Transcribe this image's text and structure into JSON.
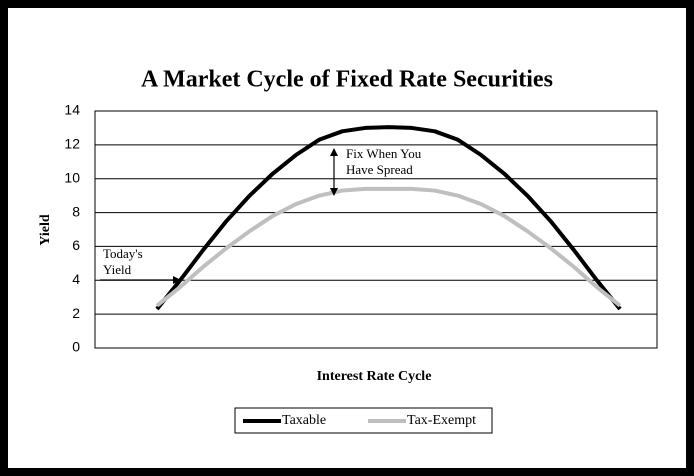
{
  "chart_data": {
    "type": "line",
    "title": "A Market Cycle of Fixed Rate Securities",
    "x_label": "Interest Rate Cycle",
    "y_label": "Yield",
    "categories": [
      null,
      null,
      null,
      null,
      null,
      null,
      null,
      null,
      null,
      null,
      null,
      null,
      null,
      null,
      null,
      null,
      null,
      null,
      null,
      null,
      null
    ],
    "series": [
      {
        "name": "Taxable",
        "color": "#000000",
        "values": [
          2.3,
          4.0,
          5.8,
          7.5,
          9.0,
          10.3,
          11.4,
          12.3,
          12.8,
          13.0,
          13.05,
          13.0,
          12.8,
          12.3,
          11.4,
          10.3,
          9.0,
          7.5,
          5.8,
          4.0,
          2.3
        ]
      },
      {
        "name": "Tax-Exempt",
        "color": "#bfbfbf",
        "values": [
          2.5,
          3.6,
          4.8,
          5.9,
          6.9,
          7.8,
          8.5,
          9.0,
          9.3,
          9.4,
          9.4,
          9.4,
          9.3,
          9.0,
          8.5,
          7.8,
          6.9,
          5.9,
          4.8,
          3.6,
          2.5
        ]
      }
    ],
    "ylim": [
      0,
      14
    ],
    "yticks": [
      0,
      2,
      4,
      6,
      8,
      10,
      12,
      14
    ],
    "grid": true,
    "legend": "bottom",
    "annotations": [
      {
        "lines": [
          "Fix When You",
          "Have Spread"
        ]
      },
      {
        "lines": [
          "Today's",
          "Yield"
        ]
      }
    ]
  }
}
